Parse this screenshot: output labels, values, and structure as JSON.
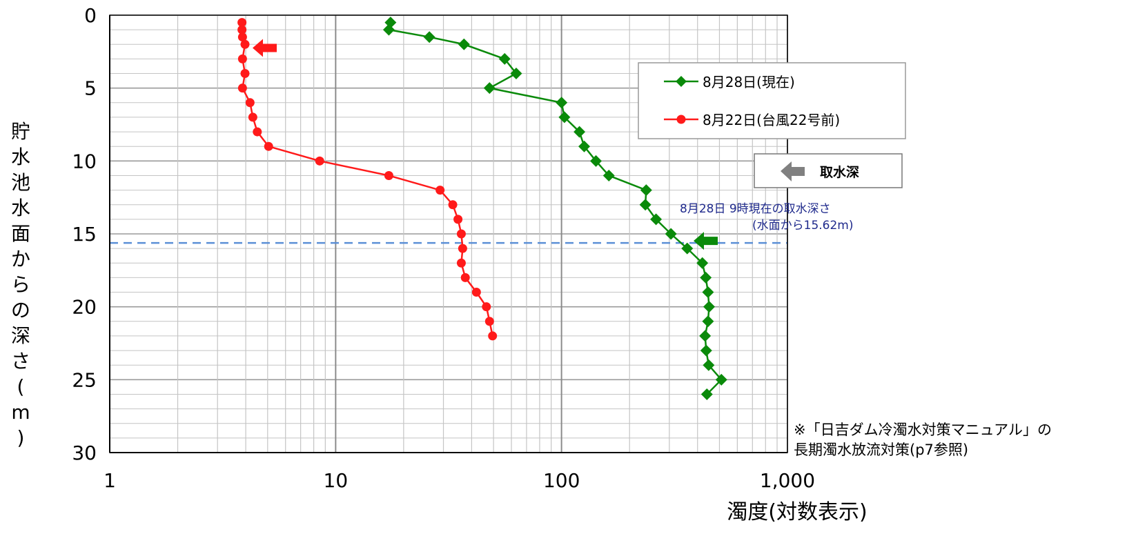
{
  "chart_data": {
    "type": "line",
    "x_scale": "log",
    "xlim": [
      1,
      1000
    ],
    "ylim": [
      0,
      30
    ],
    "y_inverted": true,
    "xlabel": "濁度(対数表示)",
    "ylabel": "貯水池水面からの深さ(m)",
    "x_ticks": [
      "1",
      "10",
      "100",
      "1,000"
    ],
    "y_ticks": [
      "0",
      "5",
      "10",
      "15",
      "20",
      "25",
      "30"
    ],
    "grid": true,
    "legend_position": "top-right",
    "series": [
      {
        "name": "8月28日(現在)",
        "color": "#0a8a0a",
        "marker": "diamond",
        "points": [
          [
            17.5,
            0.5
          ],
          [
            17.2,
            1
          ],
          [
            26,
            1.5
          ],
          [
            37,
            2
          ],
          [
            56,
            3
          ],
          [
            63,
            4
          ],
          [
            48,
            5
          ],
          [
            100,
            6
          ],
          [
            103,
            7
          ],
          [
            120,
            8
          ],
          [
            126,
            9
          ],
          [
            142,
            10
          ],
          [
            162,
            11
          ],
          [
            237,
            12
          ],
          [
            235,
            13
          ],
          [
            262,
            14
          ],
          [
            305,
            15
          ],
          [
            360,
            16
          ],
          [
            420,
            17
          ],
          [
            435,
            18
          ],
          [
            445,
            19
          ],
          [
            450,
            20
          ],
          [
            445,
            21
          ],
          [
            432,
            22
          ],
          [
            437,
            23
          ],
          [
            448,
            24
          ],
          [
            510,
            25
          ],
          [
            440,
            26
          ]
        ]
      },
      {
        "name": "8月22日(台風22号前)",
        "color": "#ff1a1a",
        "marker": "circle",
        "points": [
          [
            3.85,
            0.5
          ],
          [
            3.85,
            1
          ],
          [
            3.87,
            1.5
          ],
          [
            3.97,
            2
          ],
          [
            3.87,
            3
          ],
          [
            3.97,
            4
          ],
          [
            3.87,
            5
          ],
          [
            4.18,
            6
          ],
          [
            4.3,
            7
          ],
          [
            4.5,
            8
          ],
          [
            5.05,
            9
          ],
          [
            8.5,
            10
          ],
          [
            17.2,
            11
          ],
          [
            29,
            12
          ],
          [
            33,
            13
          ],
          [
            34.8,
            14
          ],
          [
            36,
            15
          ],
          [
            36.5,
            16
          ],
          [
            36,
            17
          ],
          [
            37.5,
            18
          ],
          [
            42,
            19
          ],
          [
            46.5,
            20
          ],
          [
            48,
            21
          ],
          [
            49.5,
            22
          ]
        ]
      }
    ],
    "reference_line": {
      "depth": 15.62,
      "color": "#5b8fd6",
      "label_line1": "8月28日  9時現在の取水深さ",
      "label_line2": "(水面から15.62m)"
    },
    "intake_legend_label": "取水深",
    "note_line1": "※「日吉ダム冷濁水対策マニュアル」の",
    "note_line2": "長期濁水放流対策(p7参照)"
  }
}
